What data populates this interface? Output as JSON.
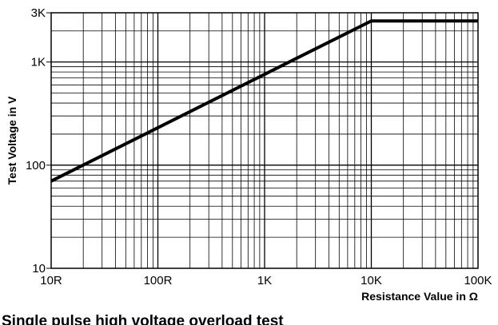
{
  "chart_data": {
    "type": "line",
    "title": "",
    "xlabel": "Resistance Value in Ω",
    "ylabel": "Test Voltage in V",
    "x_scale": "log",
    "y_scale": "log",
    "xlim": [
      10,
      100000
    ],
    "ylim": [
      10,
      3000
    ],
    "grid": true,
    "x_ticks": [
      {
        "value": 10,
        "label": "10R"
      },
      {
        "value": 100,
        "label": "100R"
      },
      {
        "value": 1000,
        "label": "1K"
      },
      {
        "value": 10000,
        "label": "10K"
      },
      {
        "value": 100000,
        "label": "100K"
      }
    ],
    "y_ticks": [
      {
        "value": 10,
        "label": "10"
      },
      {
        "value": 100,
        "label": "100"
      },
      {
        "value": 1000,
        "label": "1K"
      },
      {
        "value": 3000,
        "label": "3K"
      }
    ],
    "series": [
      {
        "x": [
          10,
          10000,
          100000
        ],
        "y": [
          70,
          2500,
          2500
        ]
      }
    ]
  },
  "footer_text": "Single pulse high voltage overload test"
}
